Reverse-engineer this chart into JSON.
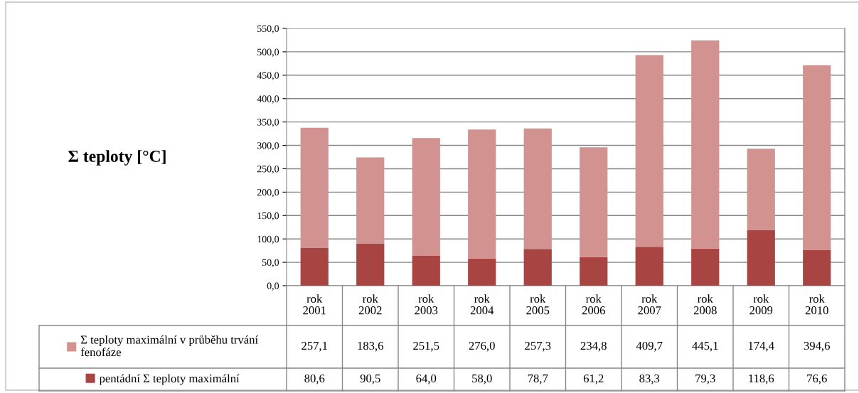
{
  "chart_data": {
    "type": "bar",
    "stacked": true,
    "annotations": [
      "Σ teploty [°C]"
    ],
    "categories": [
      "rok 2001",
      "rok 2002",
      "rok 2003",
      "rok 2004",
      "rok 2005",
      "rok 2006",
      "rok 2007",
      "rok 2008",
      "rok 2009",
      "rok 2010"
    ],
    "series": [
      {
        "name": "pentádní Σ teploty maximální",
        "color": "#a84543",
        "values": [
          80.6,
          90.5,
          64.0,
          58.0,
          78.7,
          61.2,
          83.3,
          79.3,
          118.6,
          76.6
        ],
        "value_labels": [
          "80,6",
          "90,5",
          "64,0",
          "58,0",
          "78,7",
          "61,2",
          "83,3",
          "79,3",
          "118,6",
          "76,6"
        ]
      },
      {
        "name": "Σ teploty maximální v průběhu trvání fenofáze",
        "color": "#d29290",
        "values": [
          257.1,
          183.6,
          251.5,
          276.0,
          257.3,
          234.8,
          409.7,
          445.1,
          174.4,
          394.6
        ],
        "value_labels": [
          "257,1",
          "183,6",
          "251,5",
          "276,0",
          "257,3",
          "234,8",
          "409,7",
          "445,1",
          "174,4",
          "394,6"
        ]
      }
    ],
    "ylim": [
      0,
      550
    ],
    "yticks": [
      {
        "value": 0,
        "label": "0,0"
      },
      {
        "value": 50,
        "label": "50,0"
      },
      {
        "value": 100,
        "label": "100,0"
      },
      {
        "value": 150,
        "label": "150,0"
      },
      {
        "value": 200,
        "label": "200,0"
      },
      {
        "value": 250,
        "label": "250,0"
      },
      {
        "value": 300,
        "label": "300,0"
      },
      {
        "value": 350,
        "label": "350,0"
      },
      {
        "value": 400,
        "label": "400,0"
      },
      {
        "value": 450,
        "label": "450,0"
      },
      {
        "value": 500,
        "label": "500,0"
      },
      {
        "value": 550,
        "label": "550,0"
      }
    ],
    "grid": "y",
    "legend": "bottom"
  }
}
